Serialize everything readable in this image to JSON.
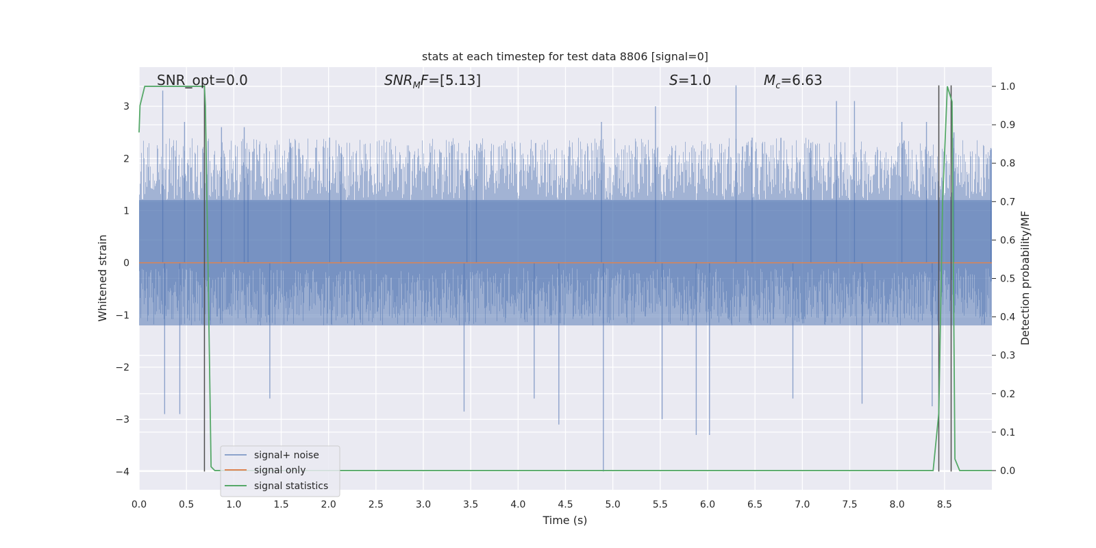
{
  "chart_data": {
    "type": "line",
    "title": "stats at each timestep for test data 8806 [signal=0]",
    "xlabel": "Time (s)",
    "ylabel": "Whitened strain",
    "y2label": "Detection probability/MF",
    "xlim": [
      0.0,
      9.0
    ],
    "ylim": [
      -4.35,
      3.75
    ],
    "y2lim": [
      -0.05,
      1.05
    ],
    "x_ticks": [
      0.0,
      0.5,
      1.0,
      1.5,
      2.0,
      2.5,
      3.0,
      3.5,
      4.0,
      4.5,
      5.0,
      5.5,
      6.0,
      6.5,
      7.0,
      7.5,
      8.0,
      8.5
    ],
    "x_tick_labels": [
      "0.0",
      "0.5",
      "1.0",
      "1.5",
      "2.0",
      "2.5",
      "3.0",
      "3.5",
      "4.0",
      "4.5",
      "5.0",
      "5.5",
      "6.0",
      "6.5",
      "7.0",
      "7.5",
      "8.0",
      "8.5"
    ],
    "y_ticks": [
      3,
      2,
      1,
      0,
      -1,
      -2,
      -3,
      -4
    ],
    "y_tick_labels": [
      "3",
      "2",
      "1",
      "0",
      "−1",
      "−2",
      "−3",
      "−4"
    ],
    "y2_ticks": [
      1.0,
      0.9,
      0.8,
      0.7,
      0.6,
      0.5,
      0.4,
      0.3,
      0.2,
      0.1,
      0.0
    ],
    "y2_tick_labels": [
      "1.0",
      "0.9",
      "0.8",
      "0.7",
      "0.6",
      "0.5",
      "0.4",
      "0.3",
      "0.2",
      "0.1",
      "0.0"
    ],
    "grid": true,
    "legend_position": "lower-left",
    "series": [
      {
        "name": "signal+ noise",
        "color": "#4c72b0",
        "axis": "left",
        "kind": "noise",
        "envelope": 1.2,
        "typical_peak": [
          -2.3,
          2.4
        ],
        "spikes": [
          {
            "x": 0.25,
            "y": 3.3
          },
          {
            "x": 0.27,
            "y": -2.9
          },
          {
            "x": 0.43,
            "y": -2.9
          },
          {
            "x": 0.48,
            "y": 2.7
          },
          {
            "x": 0.87,
            "y": 2.6
          },
          {
            "x": 1.11,
            "y": 2.6
          },
          {
            "x": 1.15,
            "y": 1.8
          },
          {
            "x": 1.38,
            "y": -2.6
          },
          {
            "x": 1.6,
            "y": 2.3
          },
          {
            "x": 2.01,
            "y": 2.4
          },
          {
            "x": 2.13,
            "y": 2.1
          },
          {
            "x": 3.43,
            "y": -2.85
          },
          {
            "x": 3.46,
            "y": 1.8
          },
          {
            "x": 3.56,
            "y": 1.6
          },
          {
            "x": 4.17,
            "y": -2.6
          },
          {
            "x": 4.43,
            "y": -3.1
          },
          {
            "x": 4.88,
            "y": 2.7
          },
          {
            "x": 4.9,
            "y": -4.0
          },
          {
            "x": 5.45,
            "y": 3.0
          },
          {
            "x": 5.52,
            "y": -3.0
          },
          {
            "x": 5.88,
            "y": -3.3
          },
          {
            "x": 6.02,
            "y": -3.3
          },
          {
            "x": 6.3,
            "y": 3.4
          },
          {
            "x": 6.47,
            "y": 2.4
          },
          {
            "x": 6.9,
            "y": -2.6
          },
          {
            "x": 7.09,
            "y": 2.3
          },
          {
            "x": 7.36,
            "y": 3.1
          },
          {
            "x": 7.55,
            "y": 3.1
          },
          {
            "x": 7.63,
            "y": -2.7
          },
          {
            "x": 8.05,
            "y": 2.7
          },
          {
            "x": 8.31,
            "y": 2.7
          },
          {
            "x": 8.37,
            "y": -2.75
          },
          {
            "x": 8.6,
            "y": 2.5
          },
          {
            "x": 8.99,
            "y": 2.2
          }
        ]
      },
      {
        "name": "signal only",
        "color": "#dd8452",
        "axis": "left",
        "x": [
          0.0,
          9.0
        ],
        "y": [
          0.0,
          0.0
        ]
      },
      {
        "name": "signal statistics",
        "color": "#55a868",
        "axis": "right",
        "x": [
          0.0,
          0.01,
          0.06,
          0.12,
          0.3,
          0.69,
          0.7,
          0.73,
          0.76,
          0.8,
          1.0,
          2.0,
          4.0,
          6.0,
          8.0,
          8.38,
          8.44,
          8.48,
          8.53,
          8.58,
          8.61,
          8.66,
          9.0
        ],
        "y": [
          0.88,
          0.95,
          1.0,
          1.0,
          1.0,
          1.0,
          0.95,
          0.5,
          0.01,
          0.0,
          0.0,
          0.0,
          0.0,
          0.0,
          0.0,
          0.0,
          0.15,
          0.7,
          1.0,
          0.96,
          0.03,
          0.0,
          0.0
        ]
      }
    ],
    "vlines": [
      0.69,
      8.44,
      8.57
    ],
    "vline_color": "#4d4d4d",
    "vline_range": [
      -4.0,
      3.4
    ],
    "annotations": {
      "snr_opt": "SNR_opt=0.0",
      "snr_mf_var": "SNR",
      "snr_mf_sub": "M",
      "snr_mf_rest": "F=[5.13]",
      "s_var": "S",
      "s_rest": "=1.0",
      "mc_var": "M",
      "mc_sub": "c",
      "mc_rest": "=6.63"
    },
    "colors": {
      "plot_background": "#eaeaf2",
      "grid": "#ffffff",
      "text": "#262626"
    }
  }
}
